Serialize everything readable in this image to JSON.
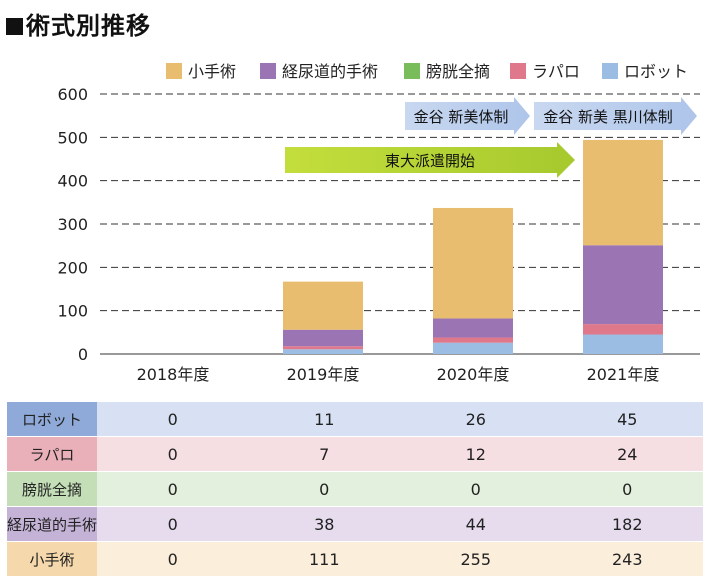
{
  "title": "術式別推移",
  "colors": {
    "小手術": "#e8bd70",
    "経尿道的手術": "#9b74b3",
    "膀胱全摘": "#79bd5b",
    "ラパロ": "#e0788b",
    "ロボット": "#9cbde3"
  },
  "row_colors": {
    "ロボット": {
      "head": "#8faad9",
      "body": "#d7e1f3"
    },
    "ラパロ": {
      "head": "#eab0ba",
      "body": "#f6dfe3"
    },
    "膀胱全摘": {
      "head": "#c4dfb8",
      "body": "#e3f0dd"
    },
    "経尿道的手術": {
      "head": "#c4b3d6",
      "body": "#e6dcee"
    },
    "小手術": {
      "head": "#f5d8ab",
      "body": "#fbeedb"
    }
  },
  "annotations": [
    {
      "text": "東大派遣開始",
      "x_from": "2019年度",
      "x_to": "2020年度",
      "color": "#b6d334"
    },
    {
      "text": "金谷 新美体制",
      "x_from": "2020年度",
      "x_to": "2020年度",
      "color": "#bcd0ee"
    },
    {
      "text": "金谷 新美 黒川体制",
      "x_from": "2021年度",
      "x_to": "2021年度",
      "color": "#bcd0ee"
    }
  ],
  "chart_data": {
    "type": "bar",
    "stacked": true,
    "title": "術式別推移",
    "categories": [
      "2018年度",
      "2019年度",
      "2020年度",
      "2021年度"
    ],
    "series": [
      {
        "name": "ロボット",
        "values": [
          0,
          11,
          26,
          45
        ]
      },
      {
        "name": "ラパロ",
        "values": [
          0,
          7,
          12,
          24
        ]
      },
      {
        "name": "膀胱全摘",
        "values": [
          0,
          0,
          0,
          0
        ]
      },
      {
        "name": "経尿道的手術",
        "values": [
          0,
          38,
          44,
          182
        ]
      },
      {
        "name": "小手術",
        "values": [
          0,
          111,
          255,
          243
        ]
      }
    ],
    "legend_order": [
      "小手術",
      "経尿道的手術",
      "膀胱全摘",
      "ラパロ",
      "ロボット"
    ],
    "legend_position": "top-right",
    "ylim": [
      0,
      600
    ],
    "yticks": [
      0,
      100,
      200,
      300,
      400,
      500,
      600
    ],
    "grid": "dashed-horizontal",
    "xlabel": "",
    "ylabel": ""
  },
  "table": {
    "rows": [
      {
        "label": "ロボット",
        "values": [
          "0",
          "11",
          "26",
          "45"
        ]
      },
      {
        "label": "ラパロ",
        "values": [
          "0",
          "7",
          "12",
          "24"
        ]
      },
      {
        "label": "膀胱全摘",
        "values": [
          "0",
          "0",
          "0",
          "0"
        ]
      },
      {
        "label": "経尿道的手術",
        "values": [
          "0",
          "38",
          "44",
          "182"
        ]
      },
      {
        "label": "小手術",
        "values": [
          "0",
          "111",
          "255",
          "243"
        ]
      }
    ]
  }
}
